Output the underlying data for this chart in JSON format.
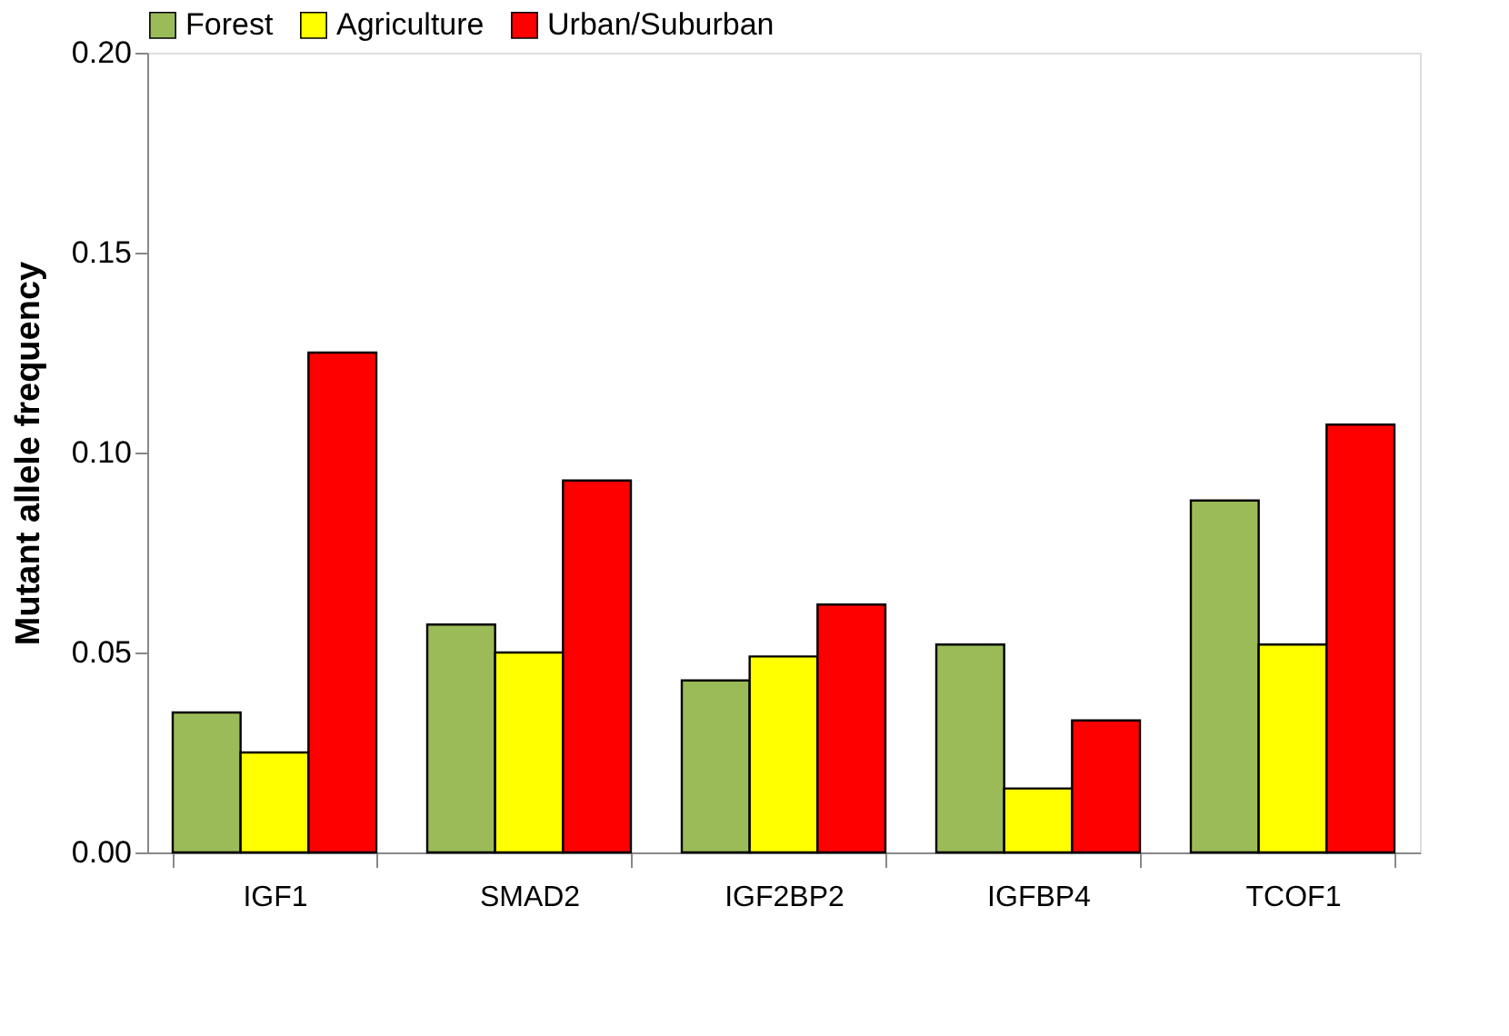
{
  "chart_data": {
    "type": "bar",
    "ylabel": "Mutant allele frequency",
    "categories": [
      "IGF1",
      "SMAD2",
      "IGF2BP2",
      "IGFBP4",
      "TCOF1"
    ],
    "series": [
      {
        "name": "Forest",
        "color": "#9bbb59",
        "values": [
          0.035,
          0.057,
          0.043,
          0.052,
          0.088
        ]
      },
      {
        "name": "Agriculture",
        "color": "#ffff00",
        "values": [
          0.025,
          0.05,
          0.049,
          0.016,
          0.052
        ]
      },
      {
        "name": "Urban/Suburban",
        "color": "#ff0000",
        "values": [
          0.125,
          0.093,
          0.062,
          0.033,
          0.107
        ]
      }
    ],
    "ylim": [
      0,
      0.2
    ],
    "yticks": [
      {
        "value": 0,
        "label": "0.00"
      },
      {
        "value": 0.05,
        "label": "0.05"
      },
      {
        "value": 0.1,
        "label": "0.10"
      },
      {
        "value": 0.15,
        "label": "0.15"
      },
      {
        "value": 0.2,
        "label": "0.20"
      }
    ],
    "grid": false,
    "legend": "top"
  }
}
